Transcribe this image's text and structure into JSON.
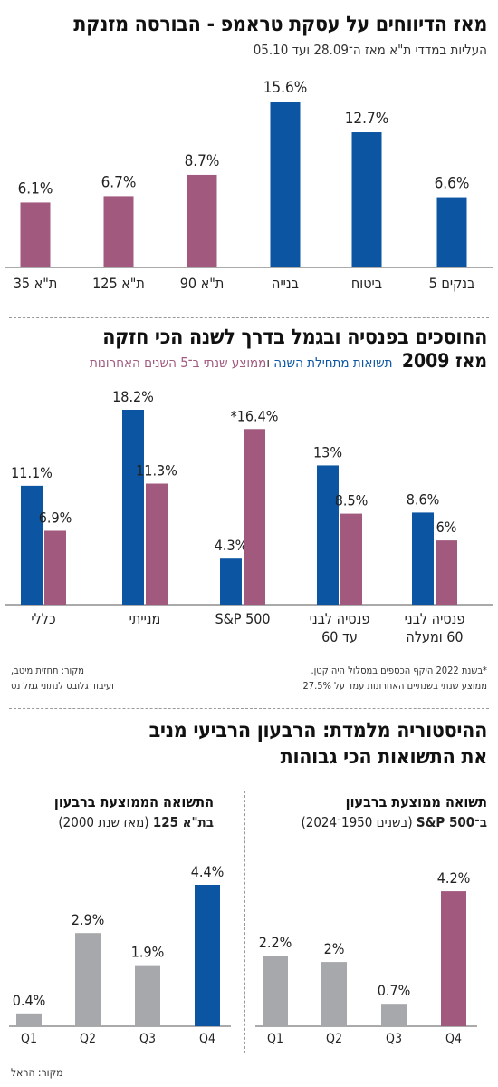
{
  "colors": {
    "blue": "#0b55a2",
    "purple": "#a15a7e",
    "gray": "#a7a8ab",
    "axis": "#555555"
  },
  "section1": {
    "title": "מאז הדיווחים על עסקת טראמפ - הבורסה מזנקת",
    "subtitle": "העליות במדדי ת\"א מאז ה־28.09 ועד 05.10"
  },
  "section2": {
    "title": "החוסכים בפנסיה ובגמל בדרך לשנה הכי חזקה",
    "subtitle_prefix": "מאז 2009",
    "legend_blue": "תשואות מתחילת השנה",
    "legend_joiner": " ו",
    "legend_purple": "ממוצע שנתי ב־5 השנים האחרונות",
    "footnote_line1": "*בשנת 2022 היקף הכספים במסלול היה קטן.",
    "footnote_line2": "ממוצע שנתי בשנתיים האחרונות עמד על 27.5%",
    "source_line1": "מקור: תחזית מיטב,",
    "source_line2": "ועיבוד גלובס לנתוני גמל נט"
  },
  "section3": {
    "title_line1": "ההיסטוריה מלמדת: הרבעון הרביעי מניב",
    "title_line2": "את התשואות הכי גבוהות",
    "left_title1": "התשואה הממוצעת ברבעון",
    "left_title2_bold": "בת\"א 125",
    "left_title2_rest": " (מאז שנת 2000)",
    "right_title1": "תשואה ממוצעת ברבעון",
    "right_title2_bold": "ב־S&P 500",
    "right_title2_rest": " (בשנים 1950־2024)",
    "source": "מקור: הראל"
  },
  "chart_data": [
    {
      "type": "bar",
      "title": "מאז הדיווחים על עסקת טראמפ - הבורסה מזנקת",
      "subtitle": "העליות במדדי ת\"א מאז ה־28.09 ועד 05.10",
      "unit": "%",
      "categories": [
        "ת\"א 35",
        "ת\"א 125",
        "ת\"א 90",
        "בנייה",
        "ביטוח",
        "בנקים 5"
      ],
      "values": [
        6.1,
        6.7,
        8.7,
        15.6,
        12.7,
        6.6
      ],
      "labels": [
        "6.1%",
        "6.7%",
        "8.7%",
        "15.6%",
        "12.7%",
        "6.6%"
      ],
      "colors": [
        "#a15a7e",
        "#a15a7e",
        "#a15a7e",
        "#0b55a2",
        "#0b55a2",
        "#0b55a2"
      ],
      "ylim": [
        0,
        15.6
      ]
    },
    {
      "type": "bar",
      "title": "החוסכים בפנסיה ובגמל בדרך לשנה הכי חזקה מאז 2009",
      "unit": "%",
      "categories": [
        "כללי",
        "מנייתי",
        "S&P 500",
        "פנסיה לבני עד 60",
        "פנסיה לבני 60 ומעלה"
      ],
      "series": [
        {
          "name": "תשואות מתחילת השנה",
          "values": [
            11.1,
            18.2,
            4.3,
            13,
            8.6
          ],
          "labels": [
            "11.1%",
            "18.2%",
            "4.3%",
            "13%",
            "8.6%"
          ],
          "color": "#0b55a2"
        },
        {
          "name": "ממוצע שנתי ב־5 השנים האחרונות",
          "values": [
            6.9,
            11.3,
            16.4,
            8.5,
            6
          ],
          "labels": [
            "6.9%",
            "11.3%",
            "*16.4%",
            "8.5%",
            "6%"
          ],
          "color": "#a15a7e"
        }
      ],
      "ylim": [
        0,
        18.2
      ]
    },
    {
      "type": "bar",
      "title": "התשואה הממוצעת ברבעון בת\"א 125 (מאז שנת 2000)",
      "unit": "%",
      "categories": [
        "Q1",
        "Q2",
        "Q3",
        "Q4"
      ],
      "values": [
        0.4,
        2.9,
        1.9,
        4.4
      ],
      "labels": [
        "0.4%",
        "2.9%",
        "1.9%",
        "4.4%"
      ],
      "colors": [
        "#a7a8ab",
        "#a7a8ab",
        "#a7a8ab",
        "#0b55a2"
      ],
      "ylim": [
        0,
        4.4
      ]
    },
    {
      "type": "bar",
      "title": "תשואה ממוצעת ברבעון ב־S&P 500 (בשנים 1950־2024)",
      "unit": "%",
      "categories": [
        "Q1",
        "Q2",
        "Q3",
        "Q4"
      ],
      "values": [
        2.2,
        2,
        0.7,
        4.2
      ],
      "labels": [
        "2.2%",
        "2%",
        "0.7%",
        "4.2%"
      ],
      "colors": [
        "#a7a8ab",
        "#a7a8ab",
        "#a7a8ab",
        "#a15a7e"
      ],
      "ylim": [
        0,
        4.4
      ]
    }
  ]
}
